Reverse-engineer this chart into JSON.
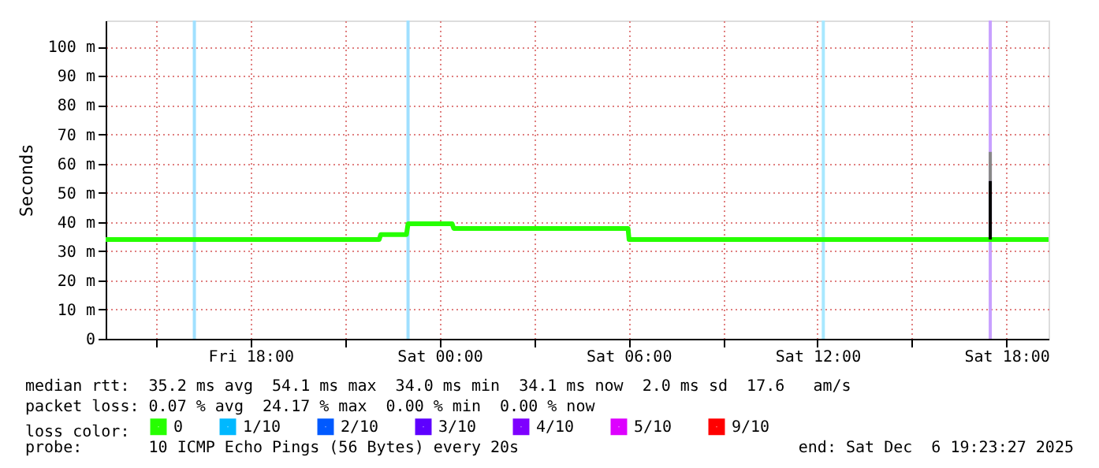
{
  "chart_data": {
    "type": "line",
    "ylabel": "Seconds",
    "legend_title": "loss color:",
    "legend": "bottom",
    "grid": true,
    "marker": "none",
    "line_style": "solid",
    "xlim": [
      "2025-12-05T13:24",
      "2025-12-06T19:20"
    ],
    "xticks": [
      {
        "value": "2025-12-05T15:00",
        "label": null
      },
      {
        "value": "2025-12-05T18:00",
        "label": "Fri 18:00"
      },
      {
        "value": "2025-12-05T21:00",
        "label": null
      },
      {
        "value": "2025-12-06T00:00",
        "label": "Sat 00:00"
      },
      {
        "value": "2025-12-06T03:00",
        "label": null
      },
      {
        "value": "2025-12-06T06:00",
        "label": "Sat 06:00"
      },
      {
        "value": "2025-12-06T09:00",
        "label": null
      },
      {
        "value": "2025-12-06T12:00",
        "label": "Sat 12:00"
      },
      {
        "value": "2025-12-06T15:00",
        "label": null
      },
      {
        "value": "2025-12-06T18:00",
        "label": "Sat 18:00"
      }
    ],
    "ylim": [
      0,
      109
    ],
    "yticks": [
      0,
      {
        "value": 10,
        "label": "10 m"
      },
      {
        "value": 20,
        "label": "20 m"
      },
      {
        "value": 30,
        "label": "30 m"
      },
      {
        "value": 40,
        "label": "40 m"
      },
      {
        "value": 50,
        "label": "50 m"
      },
      {
        "value": 60,
        "label": "60 m"
      },
      {
        "value": 70,
        "label": "70 m"
      },
      {
        "value": 80,
        "label": "80 m"
      },
      {
        "value": 90,
        "label": "90 m"
      },
      {
        "value": 100,
        "label": "100 m"
      }
    ],
    "series": [
      {
        "name": "0",
        "color": "#26ff00",
        "x": [
          "2025-12-05T13:24",
          "2025-12-05T22:05",
          "2025-12-05T22:08",
          "2025-12-05T22:57",
          "2025-12-05T23:00",
          "2025-12-06T00:24",
          "2025-12-06T00:27",
          "2025-12-06T05:59",
          "2025-12-06T06:01",
          "2025-12-06T19:20"
        ],
        "values": [
          34,
          34,
          35.7,
          35.7,
          39.4,
          39.4,
          37.8,
          37.8,
          34,
          34
        ]
      },
      {
        "name": "1/10",
        "color": "#00b8ff"
      },
      {
        "name": "2/10",
        "color": "#0059ff"
      },
      {
        "name": "3/10",
        "color": "#5e00ff"
      },
      {
        "name": "4/10",
        "color": "#7e00ff"
      },
      {
        "name": "5/10",
        "color": "#dd00ff"
      },
      {
        "name": "9/10",
        "color": "#ff0000"
      },
      {
        "color": "#000000",
        "x": [
          "2025-12-06T17:29",
          "2025-12-06T17:29"
        ],
        "values": [
          34,
          54.1
        ]
      },
      {
        "color": "#888888",
        "x": [
          "2025-12-06T17:29",
          "2025-12-06T17:29"
        ],
        "values": [
          54.1,
          64
        ]
      }
    ],
    "ref_lines": [
      {
        "axis": "x",
        "value": "2025-12-05T16:13",
        "color": "#a0e0ff"
      },
      {
        "axis": "x",
        "value": "2025-12-05T23:00",
        "color": "#a0e0ff"
      },
      {
        "axis": "x",
        "value": "2025-12-06T12:11",
        "color": "#a8e8ff"
      },
      {
        "axis": "x",
        "value": "2025-12-06T17:29",
        "color": "#c8a0ff"
      }
    ],
    "annotations": [
      "median rtt:  35.2 ms avg  54.1 ms max  34.0 ms min  34.1 ms now  2.0 ms sd  17.6   am/s",
      "packet loss: 0.07 % avg  24.17 % max  0.00 % min  0.00 % now",
      "probe:       10 ICMP Echo Pings (56 Bytes) every 20s",
      "end: Sat Dec  6 19:23:27 2025"
    ]
  }
}
